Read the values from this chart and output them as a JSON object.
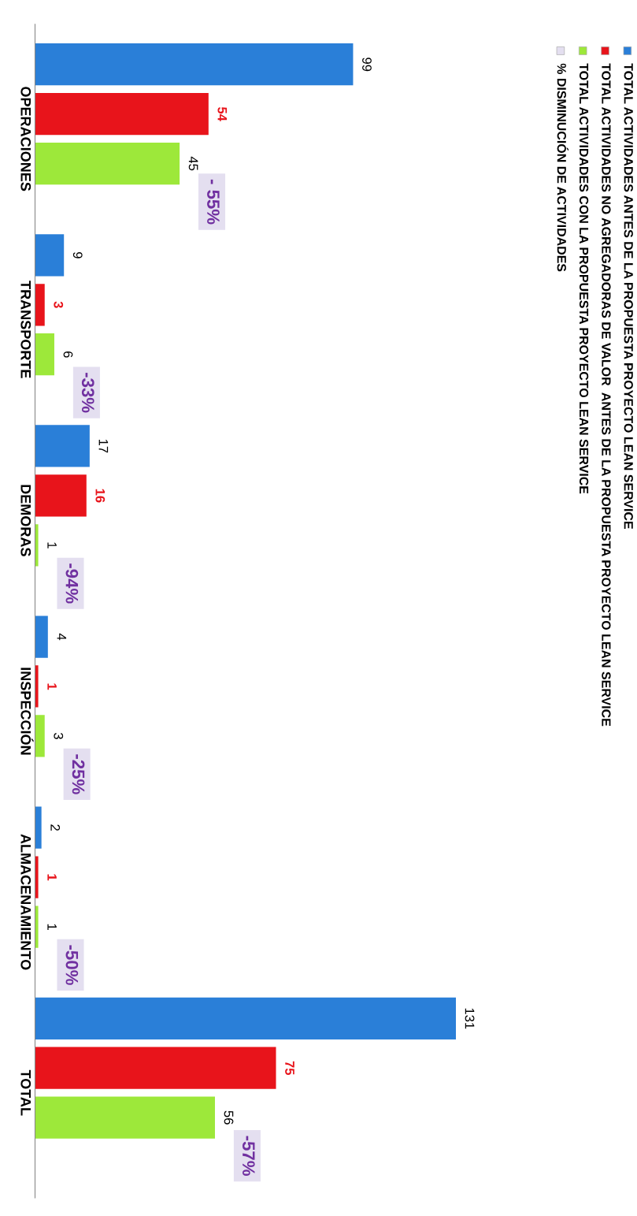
{
  "chart_data": {
    "type": "bar",
    "orientation": "horizontal",
    "data_labels": true,
    "legend": "right",
    "grid": false,
    "categories": [
      "OPERACIONES",
      "TRANSPORTE",
      "DEMORAS",
      "INSPECCIÓN",
      "ALMACENAMIENTO",
      "TOTAL"
    ],
    "series": [
      {
        "name": "TOTAL ACTIVIDADES ANTES DE LA PROPUESTA PROYECTO LEAN SERVICE",
        "color": "#2a7fd8",
        "values": [
          99,
          9,
          17,
          4,
          2,
          131
        ]
      },
      {
        "name": "TOTAL ACTIVIDADES NO AGREGADORAS DE VALOR  ANTES DE LA PROPUESTA PROYECTO LEAN SERVICE",
        "color": "#e8141b",
        "values": [
          54,
          3,
          16,
          1,
          1,
          75
        ]
      },
      {
        "name": "TOTAL ACTIVIDADES CON LA PROPUESTA PROYECTO LEAN SERVICE",
        "color": "#9de83a",
        "values": [
          45,
          6,
          1,
          3,
          1,
          56
        ]
      },
      {
        "name": "% DISMINUCIÓN DE ACTIVIDADES",
        "color": "#e4dff0",
        "values": [
          null,
          null,
          null,
          null,
          null,
          null
        ],
        "value_labels": [
          "- 55%",
          "-33%",
          "-94%",
          "-25%",
          "-50%",
          "-57%"
        ]
      }
    ]
  }
}
